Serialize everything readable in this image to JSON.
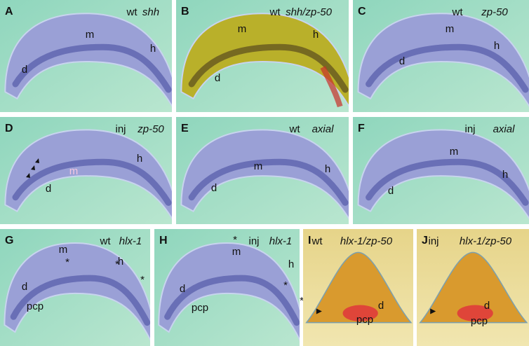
{
  "figure": {
    "panels": [
      {
        "letter": "A",
        "genotype": "wt",
        "probe": "shh",
        "labels": [
          "d",
          "m",
          "h"
        ]
      },
      {
        "letter": "B",
        "genotype": "wt",
        "probe": "shh/zp-50",
        "labels": [
          "m",
          "h",
          "d"
        ]
      },
      {
        "letter": "C",
        "genotype": "wt",
        "probe": "zp-50",
        "labels": [
          "m",
          "h",
          "d"
        ]
      },
      {
        "letter": "D",
        "genotype": "inj",
        "probe": "zp-50",
        "labels": [
          "m",
          "h",
          "d"
        ]
      },
      {
        "letter": "E",
        "genotype": "wt",
        "probe": "axial",
        "labels": [
          "m",
          "h",
          "d"
        ]
      },
      {
        "letter": "F",
        "genotype": "inj",
        "probe": "axial",
        "labels": [
          "m",
          "h",
          "d"
        ]
      },
      {
        "letter": "G",
        "genotype": "wt",
        "probe": "hlx-1",
        "labels": [
          "m",
          "h",
          "d",
          "pcp",
          "*",
          "*",
          "*"
        ]
      },
      {
        "letter": "H",
        "genotype": "inj",
        "probe": "hlx-1",
        "labels": [
          "*",
          "m",
          "h",
          "*",
          "*",
          "d",
          "pcp"
        ]
      },
      {
        "letter": "I",
        "genotype": "wt",
        "probe": "hlx-1/zp-50",
        "labels": [
          "d",
          "pcp"
        ]
      },
      {
        "letter": "J",
        "genotype": "inj",
        "probe": "hlx-1/zp-50",
        "labels": [
          "d",
          "pcp"
        ]
      }
    ]
  }
}
